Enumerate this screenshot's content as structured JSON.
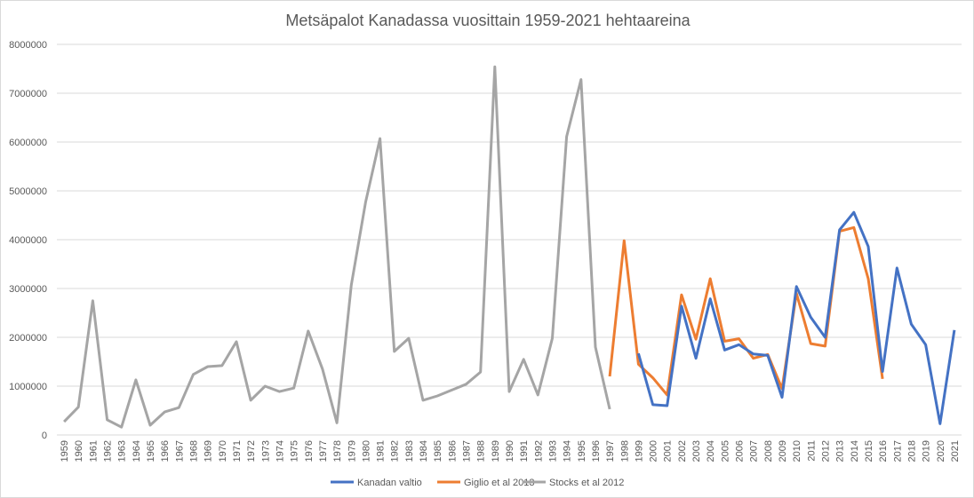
{
  "chart_data": {
    "type": "line",
    "title": "Metsäpalot Kanadassa vuosittain 1959-2021 hehtaareina",
    "xlabel": "",
    "ylabel": "",
    "ylim": [
      0,
      8000000
    ],
    "yticks": [
      0,
      1000000,
      2000000,
      3000000,
      4000000,
      5000000,
      6000000,
      7000000,
      8000000
    ],
    "ytick_labels": [
      "0",
      "1000000",
      "2000000",
      "3000000",
      "4000000",
      "5000000",
      "6000000",
      "7000000",
      "8000000"
    ],
    "grid": true,
    "legend_position": "bottom",
    "x": [
      1959,
      1960,
      1961,
      1962,
      1963,
      1964,
      1965,
      1966,
      1967,
      1968,
      1969,
      1970,
      1971,
      1972,
      1973,
      1974,
      1975,
      1976,
      1977,
      1978,
      1979,
      1980,
      1981,
      1982,
      1983,
      1984,
      1985,
      1986,
      1987,
      1988,
      1989,
      1990,
      1991,
      1992,
      1993,
      1994,
      1995,
      1996,
      1997,
      1998,
      1999,
      2000,
      2001,
      2002,
      2003,
      2004,
      2005,
      2006,
      2007,
      2008,
      2009,
      2010,
      2011,
      2012,
      2013,
      2014,
      2015,
      2016,
      2017,
      2018,
      2019,
      2020,
      2021
    ],
    "series": [
      {
        "name": "Kanadan valtio",
        "color": "#4472c4",
        "values": [
          null,
          null,
          null,
          null,
          null,
          null,
          null,
          null,
          null,
          null,
          null,
          null,
          null,
          null,
          null,
          null,
          null,
          null,
          null,
          null,
          null,
          null,
          null,
          null,
          null,
          null,
          null,
          null,
          null,
          null,
          null,
          null,
          null,
          null,
          null,
          null,
          null,
          null,
          null,
          null,
          1670000,
          620000,
          600000,
          2640000,
          1570000,
          2790000,
          1740000,
          1850000,
          1660000,
          1630000,
          770000,
          3040000,
          2410000,
          2000000,
          4200000,
          4560000,
          3860000,
          1300000,
          3420000,
          2270000,
          1850000,
          230000,
          2150000
        ]
      },
      {
        "name": "Giglio et al 2013",
        "color": "#ed7d31",
        "values": [
          null,
          null,
          null,
          null,
          null,
          null,
          null,
          null,
          null,
          null,
          null,
          null,
          null,
          null,
          null,
          null,
          null,
          null,
          null,
          null,
          null,
          null,
          null,
          null,
          null,
          null,
          null,
          null,
          null,
          null,
          null,
          null,
          null,
          null,
          null,
          null,
          null,
          null,
          1200000,
          3980000,
          1450000,
          1170000,
          820000,
          2870000,
          1960000,
          3200000,
          1920000,
          1970000,
          1570000,
          1650000,
          950000,
          2900000,
          1870000,
          1820000,
          4170000,
          4250000,
          3200000,
          1150000,
          null,
          null,
          null,
          null,
          null
        ]
      },
      {
        "name": "Stocks et al 2012",
        "color": "#a5a5a5",
        "values": [
          270000,
          570000,
          2750000,
          310000,
          160000,
          1130000,
          200000,
          470000,
          560000,
          1240000,
          1400000,
          1420000,
          1910000,
          710000,
          1000000,
          890000,
          960000,
          2130000,
          1350000,
          250000,
          3070000,
          4770000,
          6070000,
          1710000,
          1980000,
          710000,
          800000,
          920000,
          1040000,
          1290000,
          7540000,
          890000,
          1550000,
          820000,
          1980000,
          6110000,
          7280000,
          1800000,
          530000,
          null,
          null,
          null,
          null,
          null,
          null,
          null,
          null,
          null,
          null,
          null,
          null,
          null,
          null,
          null,
          null,
          null,
          null,
          null,
          null,
          null,
          null,
          null,
          null
        ]
      }
    ]
  }
}
